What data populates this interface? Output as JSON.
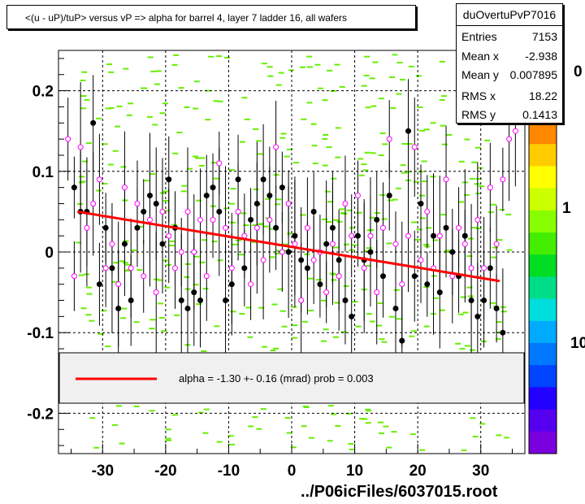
{
  "title": "<(u - uP)/tuP> versus   vP => alpha for barrel 4, layer 7 ladder 16, all wafers",
  "stats": {
    "name": "duOvertuPvP7016",
    "rows": [
      {
        "label": "Entries",
        "value": "7153"
      },
      {
        "label": "Mean x",
        "value": "-2.938"
      },
      {
        "label": "Mean y",
        "value": "0.007895"
      },
      {
        "label": "RMS x",
        "value": "18.22"
      },
      {
        "label": "RMS y",
        "value": "0.1413"
      }
    ]
  },
  "footer": "../P06icFiles/6037015.root",
  "palette_labels": [
    "0",
    "1",
    "10"
  ],
  "colors": {
    "fit": "#ff0000",
    "black_points": "#000000",
    "open_points": "#ff00ff",
    "background_cells": "#66ee00"
  },
  "chart_data": {
    "type": "scatter",
    "title": "<(u - uP)/tuP> versus   vP => alpha for barrel 4, layer 7 ladder 16, all wafers",
    "xlim": [
      -37,
      37
    ],
    "ylim": [
      -0.25,
      0.25
    ],
    "x_ticks": [
      -30,
      -20,
      -10,
      0,
      10,
      20,
      30
    ],
    "y_ticks": [
      0.2,
      0.1,
      0,
      -0.1,
      -0.2
    ],
    "x_tick_labels": [
      "-30",
      "-20",
      "-10",
      "0",
      "10",
      "20",
      "30"
    ],
    "y_tick_labels": [
      "0.2",
      "0.1",
      "0",
      "-0.1",
      "-0.2"
    ],
    "grid": true,
    "fit_line": {
      "x": [
        -34,
        33
      ],
      "y": [
        0.05,
        -0.036
      ]
    },
    "legend_text": "alpha =   -1.30 +-  0.16 (mrad) prob = 0.003",
    "series": [
      {
        "points": [
          [
            -34.5,
            0.08
          ],
          [
            -33.5,
            0.05
          ],
          [
            -32.5,
            0.05
          ],
          [
            -31.5,
            0.16
          ],
          [
            -30.5,
            -0.04
          ],
          [
            -29.5,
            0.03
          ],
          [
            -28.5,
            -0.02
          ],
          [
            -27.5,
            -0.07
          ],
          [
            -26.5,
            0.01
          ],
          [
            -25.5,
            -0.06
          ],
          [
            -24.5,
            0.03
          ],
          [
            -23.5,
            0.05
          ],
          [
            -22.5,
            0.07
          ],
          [
            -21.5,
            0.06
          ],
          [
            -20.5,
            0.01
          ],
          [
            -19.5,
            0.09
          ],
          [
            -18.5,
            0.03
          ],
          [
            -17.5,
            -0.06
          ],
          [
            -16.5,
            -0.07
          ],
          [
            -15.5,
            -0.05
          ],
          [
            -14.5,
            -0.06
          ],
          [
            -13.5,
            0.07
          ],
          [
            -12.5,
            0.08
          ],
          [
            -11.5,
            0.05
          ],
          [
            -10.5,
            -0.06
          ],
          [
            -9.5,
            -0.04
          ],
          [
            -8.5,
            0.09
          ],
          [
            -7.5,
            -0.02
          ],
          [
            -6.5,
            0.04
          ],
          [
            -5.5,
            0.06
          ],
          [
            -4.5,
            0.09
          ],
          [
            -3.5,
            0.07
          ],
          [
            -2.5,
            0.03
          ],
          [
            -1.5,
            0.08
          ],
          [
            -0.5,
            0.0
          ],
          [
            0.5,
            0.02
          ],
          [
            1.5,
            -0.01
          ],
          [
            2.5,
            -0.02
          ],
          [
            3.5,
            0.05
          ],
          [
            4.5,
            -0.04
          ],
          [
            5.5,
            0.01
          ],
          [
            6.5,
            0.03
          ],
          [
            7.5,
            -0.01
          ],
          [
            8.5,
            -0.06
          ],
          [
            9.5,
            -0.08
          ],
          [
            10.5,
            0.02
          ],
          [
            11.5,
            -0.01
          ],
          [
            12.5,
            0.0
          ],
          [
            13.5,
            0.04
          ],
          [
            14.5,
            -0.03
          ],
          [
            15.5,
            0.07
          ],
          [
            16.5,
            -0.07
          ],
          [
            17.5,
            -0.11
          ],
          [
            18.5,
            0.15
          ],
          [
            19.5,
            -0.03
          ],
          [
            20.5,
            0.06
          ],
          [
            21.5,
            -0.04
          ],
          [
            22.5,
            0.02
          ],
          [
            23.5,
            -0.05
          ],
          [
            24.5,
            0.03
          ],
          [
            25.5,
            0.0
          ],
          [
            26.5,
            -0.03
          ],
          [
            27.5,
            0.02
          ],
          [
            28.5,
            -0.06
          ],
          [
            29.5,
            -0.08
          ],
          [
            30.5,
            -0.06
          ],
          [
            31.5,
            -0.02
          ],
          [
            32.5,
            -0.07
          ],
          [
            33.5,
            -0.1
          ]
        ]
      },
      {
        "points": [
          [
            -35.5,
            0.14
          ],
          [
            -34.5,
            -0.03
          ],
          [
            -33.5,
            0.13
          ],
          [
            -32.5,
            0.03
          ],
          [
            -31.5,
            0.06
          ],
          [
            -30.5,
            0.09
          ],
          [
            -29.5,
            -0.02
          ],
          [
            -28.5,
            0.01
          ],
          [
            -27.5,
            -0.04
          ],
          [
            -26.5,
            0.08
          ],
          [
            -25.5,
            -0.02
          ],
          [
            -24.5,
            0.06
          ],
          [
            -23.5,
            -0.03
          ],
          [
            -22.5,
            0.04
          ],
          [
            -21.5,
            -0.05
          ],
          [
            -20.5,
            0.05
          ],
          [
            -19.5,
            0.02
          ],
          [
            -18.5,
            -0.02
          ],
          [
            -17.5,
            0.0
          ],
          [
            -16.5,
            0.05
          ],
          [
            -15.5,
            0.0
          ],
          [
            -14.5,
            0.04
          ],
          [
            -13.5,
            -0.03
          ],
          [
            -12.5,
            0.04
          ],
          [
            -11.5,
            0.11
          ],
          [
            -10.5,
            0.03
          ],
          [
            -9.5,
            -0.02
          ],
          [
            -8.5,
            0.05
          ],
          [
            -7.5,
            0.02
          ],
          [
            -6.5,
            -0.04
          ],
          [
            -5.5,
            0.03
          ],
          [
            -4.5,
            -0.01
          ],
          [
            -3.5,
            0.04
          ],
          [
            -2.5,
            0.13
          ],
          [
            -1.5,
            0.0
          ],
          [
            -0.5,
            0.06
          ],
          [
            0.5,
            0.01
          ],
          [
            1.5,
            -0.06
          ],
          [
            2.5,
            0.03
          ],
          [
            3.5,
            -0.01
          ],
          [
            4.5,
            0.0
          ],
          [
            5.5,
            -0.05
          ],
          [
            6.5,
            0.01
          ],
          [
            7.5,
            -0.03
          ],
          [
            8.5,
            0.06
          ],
          [
            9.5,
            0.02
          ],
          [
            10.5,
            0.07
          ],
          [
            11.5,
            -0.02
          ],
          [
            12.5,
            0.02
          ],
          [
            13.5,
            -0.05
          ],
          [
            14.5,
            0.03
          ],
          [
            15.5,
            0.14
          ],
          [
            16.5,
            0.01
          ],
          [
            17.5,
            -0.04
          ],
          [
            18.5,
            0.02
          ],
          [
            19.5,
            0.13
          ],
          [
            20.5,
            -0.01
          ],
          [
            21.5,
            0.05
          ],
          [
            22.5,
            -0.02
          ],
          [
            23.5,
            0.02
          ],
          [
            24.5,
            0.09
          ],
          [
            25.5,
            -0.03
          ],
          [
            26.5,
            0.03
          ],
          [
            27.5,
            0.01
          ],
          [
            28.5,
            -0.02
          ],
          [
            29.5,
            0.04
          ],
          [
            30.5,
            -0.02
          ],
          [
            31.5,
            0.08
          ],
          [
            32.5,
            0.01
          ],
          [
            33.5,
            0.09
          ],
          [
            34.5,
            0.14
          ],
          [
            35.5,
            0.15
          ]
        ]
      }
    ]
  }
}
